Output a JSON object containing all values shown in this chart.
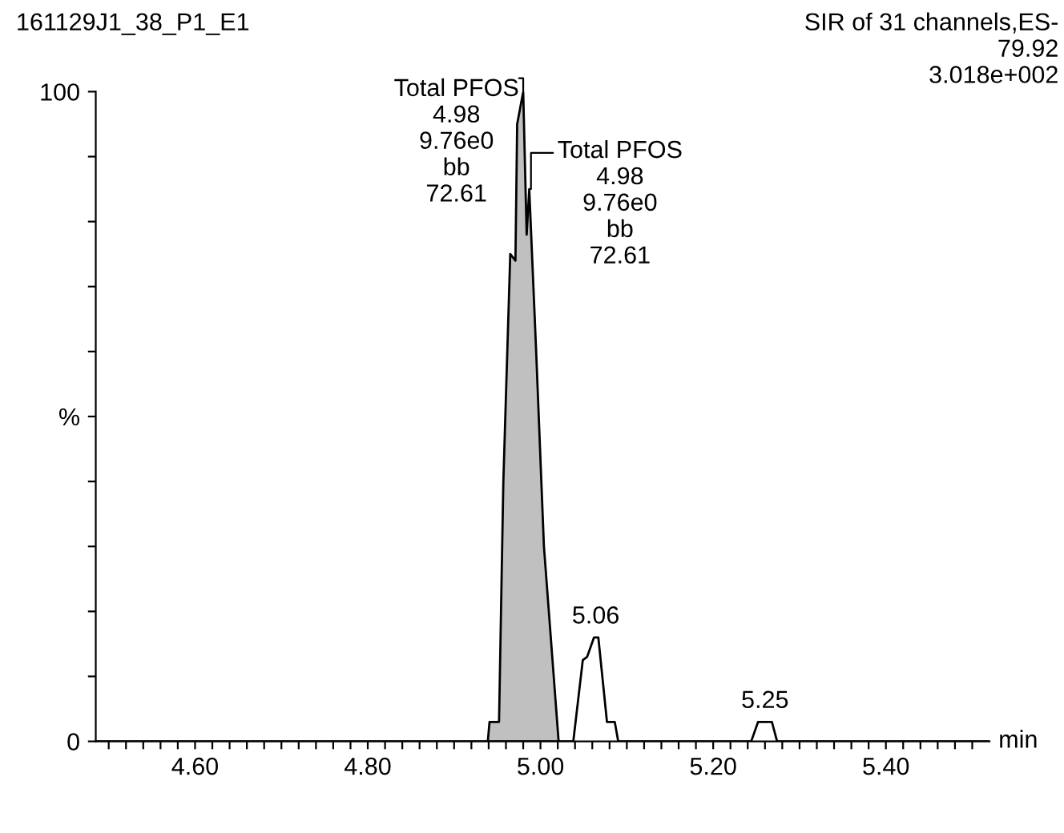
{
  "chart_data": {
    "type": "line",
    "xlabel": "min",
    "annotations": [
      "161129J1_38_P1_E1",
      "SIR of 31 channels,ES-\n79.92\n3.018e+002",
      {
        "text": "Total PFOS\n4.98\n9.76e0\nbb\n72.61",
        "x": 4.98,
        "y": 100
      },
      {
        "text": "Total PFOS\n4.98\n9.76e0\nbb\n72.61",
        "x": 4.989,
        "y": 85
      },
      {
        "text": "5.06",
        "x": 5.064,
        "y": 16
      },
      {
        "text": "5.25",
        "x": 5.26,
        "y": 3
      }
    ],
    "series": [
      {
        "type": "area",
        "color": "#c0c0c0",
        "x": [
          4.939,
          4.941,
          4.952,
          4.957,
          4.965,
          4.971,
          4.973,
          4.98,
          4.984,
          4.987,
          4.995,
          5.004,
          5.021
        ],
        "values": [
          0,
          3,
          3,
          40,
          75,
          74,
          95,
          100,
          78,
          85,
          60,
          30,
          0
        ]
      },
      {
        "color": "#000000",
        "x": [
          4.485,
          5.038,
          5.049,
          5.054,
          5.062,
          5.067,
          5.077,
          5.086,
          5.09,
          5.244,
          5.252,
          5.268,
          5.274,
          5.52
        ],
        "values": [
          0,
          0,
          12.5,
          13,
          16,
          16,
          3,
          3,
          0,
          0,
          3,
          3,
          0,
          0
        ]
      }
    ],
    "xlim": [
      4.485,
      5.52
    ],
    "ylim": [
      0,
      100
    ],
    "xticks": [
      {
        "value": 4.6,
        "label": "4.60"
      },
      {
        "value": 4.8,
        "label": "4.80"
      },
      {
        "value": 5.0,
        "label": "5.00"
      },
      {
        "value": 5.2,
        "label": "5.20"
      },
      {
        "value": 5.4,
        "label": "5.40"
      },
      {
        "value": 4.5,
        "label": null
      },
      {
        "value": 4.52,
        "label": null
      },
      {
        "value": 4.54,
        "label": null
      },
      {
        "value": 4.56,
        "label": null
      },
      {
        "value": 4.58,
        "label": null
      },
      {
        "value": 4.62,
        "label": null
      },
      {
        "value": 4.64,
        "label": null
      },
      {
        "value": 4.66,
        "label": null
      },
      {
        "value": 4.68,
        "label": null
      },
      {
        "value": 4.7,
        "label": null
      },
      {
        "value": 4.72,
        "label": null
      },
      {
        "value": 4.74,
        "label": null
      },
      {
        "value": 4.76,
        "label": null
      },
      {
        "value": 4.78,
        "label": null
      },
      {
        "value": 4.82,
        "label": null
      },
      {
        "value": 4.84,
        "label": null
      },
      {
        "value": 4.86,
        "label": null
      },
      {
        "value": 4.88,
        "label": null
      },
      {
        "value": 4.9,
        "label": null
      },
      {
        "value": 4.92,
        "label": null
      },
      {
        "value": 4.94,
        "label": null
      },
      {
        "value": 4.96,
        "label": null
      },
      {
        "value": 4.98,
        "label": null
      },
      {
        "value": 5.02,
        "label": null
      },
      {
        "value": 5.04,
        "label": null
      },
      {
        "value": 5.06,
        "label": null
      },
      {
        "value": 5.08,
        "label": null
      },
      {
        "value": 5.1,
        "label": null
      },
      {
        "value": 5.12,
        "label": null
      },
      {
        "value": 5.14,
        "label": null
      },
      {
        "value": 5.16,
        "label": null
      },
      {
        "value": 5.18,
        "label": null
      },
      {
        "value": 5.22,
        "label": null
      },
      {
        "value": 5.24,
        "label": null
      },
      {
        "value": 5.26,
        "label": null
      },
      {
        "value": 5.28,
        "label": null
      },
      {
        "value": 5.3,
        "label": null
      },
      {
        "value": 5.32,
        "label": null
      },
      {
        "value": 5.34,
        "label": null
      },
      {
        "value": 5.36,
        "label": null
      },
      {
        "value": 5.38,
        "label": null
      },
      {
        "value": 5.42,
        "label": null
      },
      {
        "value": 5.44,
        "label": null
      },
      {
        "value": 5.46,
        "label": null
      },
      {
        "value": 5.48,
        "label": null
      },
      {
        "value": 5.5,
        "label": null
      }
    ],
    "yticks": [
      0,
      100,
      {
        "value": 50,
        "label": "%"
      },
      {
        "value": 10,
        "label": null
      },
      {
        "value": 20,
        "label": null
      },
      {
        "value": 30,
        "label": null
      },
      {
        "value": 40,
        "label": null
      },
      {
        "value": 60,
        "label": null
      },
      {
        "value": 70,
        "label": null
      },
      {
        "value": 80,
        "label": null
      },
      {
        "value": 90,
        "label": null
      }
    ],
    "grid": false
  }
}
